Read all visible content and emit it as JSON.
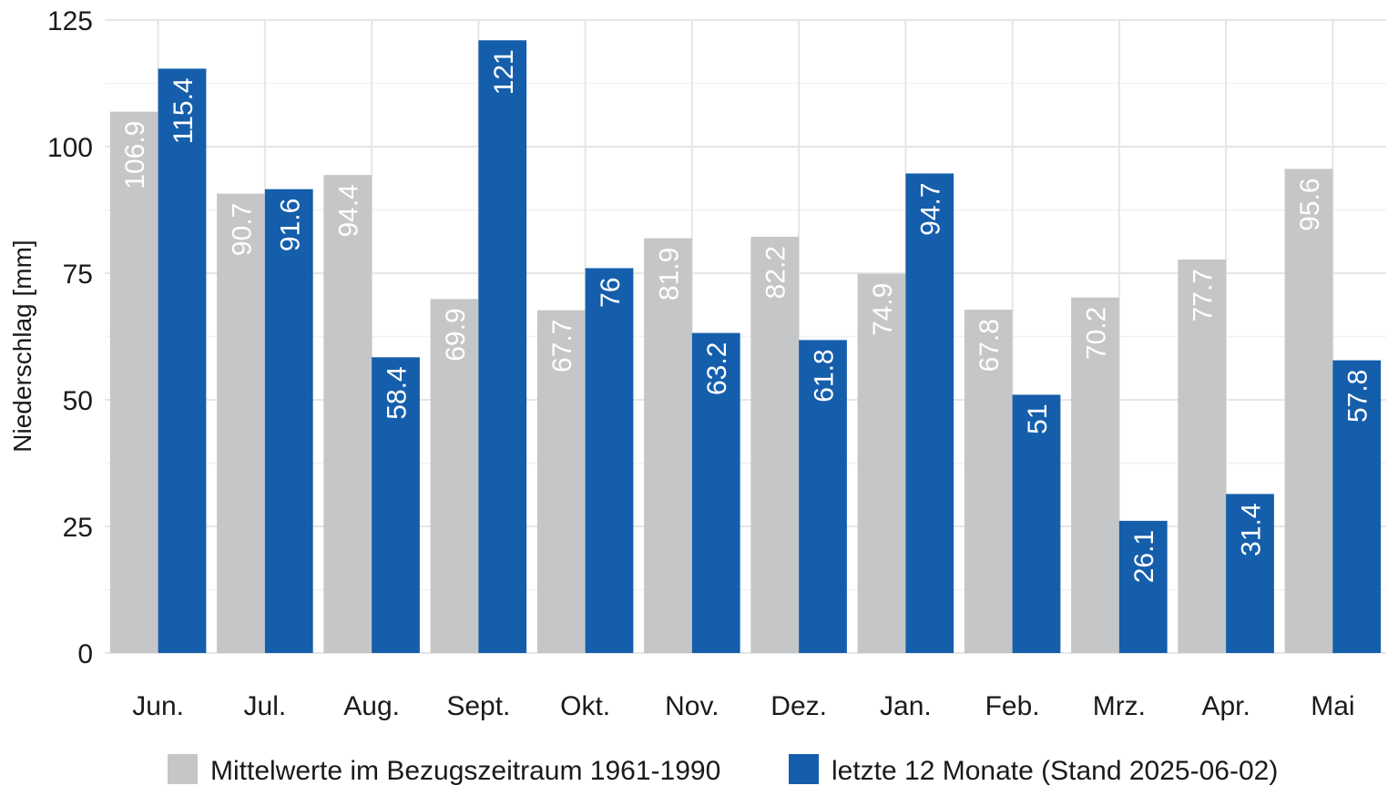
{
  "chart_data": {
    "type": "bar",
    "ylabel": "Niederschlag [mm]",
    "xlabel": "",
    "ylim": [
      0,
      125
    ],
    "yticks": [
      0,
      25,
      50,
      75,
      100,
      125
    ],
    "grid": true,
    "legend_position": "bottom",
    "categories": [
      "Jun.",
      "Jul.",
      "Aug.",
      "Sept.",
      "Okt.",
      "Nov.",
      "Dez.",
      "Jan.",
      "Feb.",
      "Mrz.",
      "Apr.",
      "Mai"
    ],
    "series": [
      {
        "name": "Mittelwerte im Bezugszeitraum 1961-1990",
        "color": "#c4c6c7",
        "values": [
          106.9,
          90.7,
          94.4,
          69.9,
          67.7,
          81.9,
          82.2,
          74.9,
          67.8,
          70.2,
          77.7,
          95.6
        ],
        "labels": [
          "106.9",
          "90.7",
          "94.4",
          "69.9",
          "67.7",
          "81.9",
          "82.2",
          "74.9",
          "67.8",
          "70.2",
          "77.7",
          "95.6"
        ]
      },
      {
        "name": "letzte 12 Monate (Stand 2025-06-02)",
        "color": "#155eab",
        "values": [
          115.4,
          91.6,
          58.4,
          121,
          76,
          63.2,
          61.8,
          94.7,
          51,
          26.1,
          31.4,
          57.8
        ],
        "labels": [
          "115.4",
          "91.6",
          "58.4",
          "121",
          "76",
          "63.2",
          "61.8",
          "94.7",
          "51",
          "26.1",
          "31.4",
          "57.8"
        ]
      }
    ]
  }
}
